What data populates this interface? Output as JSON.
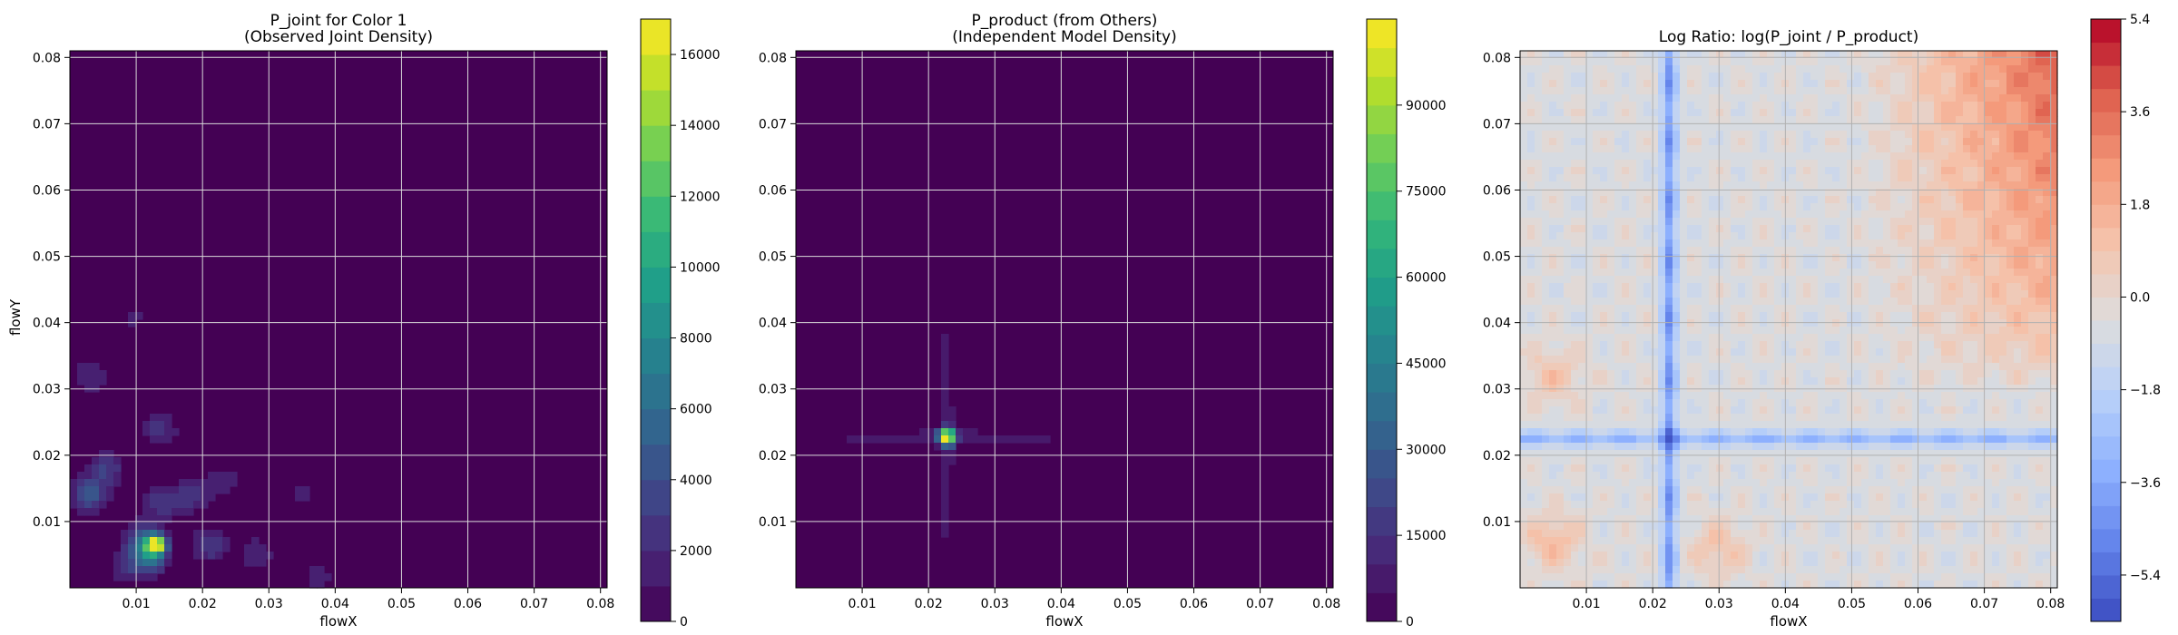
{
  "chart_data": [
    {
      "type": "heatmap",
      "title": "P_joint for Color 1\n(Observed Joint Density)",
      "xlabel": "flowX",
      "ylabel": "flowY",
      "xlim": [
        0.0,
        0.081
      ],
      "ylim": [
        0.0,
        0.081
      ],
      "xticks": [
        "0.01",
        "0.02",
        "0.03",
        "0.04",
        "0.05",
        "0.06",
        "0.07",
        "0.08"
      ],
      "yticks": [
        "0.01",
        "0.02",
        "0.03",
        "0.04",
        "0.05",
        "0.06",
        "0.07",
        "0.08"
      ],
      "grid": true,
      "colormap": "viridis",
      "colorbar": {
        "min": 0,
        "max": 17000,
        "ticks": [
          0,
          2000,
          4000,
          6000,
          8000,
          10000,
          12000,
          14000,
          16000
        ],
        "ticklabels": [
          "0",
          "2000",
          "4000",
          "6000",
          "8000",
          "10000",
          "12000",
          "14000",
          "16000"
        ],
        "levels": 17
      },
      "blobs": [
        {
          "x": 0.013,
          "y": 0.0065,
          "value": 16000
        },
        {
          "x": 0.012,
          "y": 0.005,
          "value": 7000
        },
        {
          "x": 0.011,
          "y": 0.0075,
          "value": 4000
        },
        {
          "x": 0.003,
          "y": 0.014,
          "value": 4500
        },
        {
          "x": 0.0055,
          "y": 0.018,
          "value": 3000
        },
        {
          "x": 0.014,
          "y": 0.013,
          "value": 3000
        },
        {
          "x": 0.0135,
          "y": 0.024,
          "value": 2500
        },
        {
          "x": 0.021,
          "y": 0.0065,
          "value": 3000
        },
        {
          "x": 0.0185,
          "y": 0.014,
          "value": 2500
        },
        {
          "x": 0.028,
          "y": 0.005,
          "value": 2000
        },
        {
          "x": 0.003,
          "y": 0.032,
          "value": 2000
        },
        {
          "x": 0.0095,
          "y": 0.041,
          "value": 1200
        },
        {
          "x": 0.023,
          "y": 0.016,
          "value": 1800
        },
        {
          "x": 0.0375,
          "y": 0.0015,
          "value": 1500
        },
        {
          "x": 0.0085,
          "y": 0.003,
          "value": 2200
        },
        {
          "x": 0.035,
          "y": 0.014,
          "value": 1200
        }
      ]
    },
    {
      "type": "heatmap",
      "title": "P_product (from Others)\n(Independent Model Density)",
      "xlabel": "flowX",
      "ylabel": "",
      "xlim": [
        0.0,
        0.081
      ],
      "ylim": [
        0.0,
        0.081
      ],
      "xticks": [
        "0.01",
        "0.02",
        "0.03",
        "0.04",
        "0.05",
        "0.06",
        "0.07",
        "0.08"
      ],
      "yticks": [
        "0.01",
        "0.02",
        "0.03",
        "0.04",
        "0.05",
        "0.06",
        "0.07",
        "0.08"
      ],
      "grid": true,
      "colormap": "viridis",
      "colorbar": {
        "min": 0,
        "max": 105000,
        "ticks": [
          0,
          15000,
          30000,
          45000,
          60000,
          75000,
          90000
        ],
        "ticklabels": [
          "0",
          "15000",
          "30000",
          "45000",
          "60000",
          "75000",
          "90000"
        ],
        "levels": 21
      },
      "peak": {
        "x": 0.0228,
        "y": 0.0228,
        "value": 100000
      },
      "cross_lines": {
        "x": 0.0228,
        "y": 0.0228,
        "value": 9000
      }
    },
    {
      "type": "heatmap",
      "title": "Log Ratio: log(P_joint / P_product)",
      "xlabel": "flowX",
      "ylabel": "",
      "xlim": [
        0.0,
        0.081
      ],
      "ylim": [
        0.0,
        0.081
      ],
      "xticks": [
        "0.01",
        "0.02",
        "0.03",
        "0.04",
        "0.05",
        "0.06",
        "0.07",
        "0.08"
      ],
      "yticks": [
        "0.01",
        "0.02",
        "0.03",
        "0.04",
        "0.05",
        "0.06",
        "0.07",
        "0.08"
      ],
      "grid": true,
      "colormap": "coolwarm",
      "colorbar": {
        "min": -6.3,
        "max": 5.4,
        "ticks": [
          -5.4,
          -3.6,
          -1.8,
          0.0,
          1.8,
          3.6,
          5.4
        ],
        "ticklabels": [
          "−5.4",
          "−3.6",
          "−1.8",
          "0.0",
          "1.8",
          "3.6",
          "5.4"
        ],
        "levels": 26
      },
      "trend": {
        "low_region_value": -0.5,
        "high_corner_value": 4.5,
        "cross_line_value": -3.5
      }
    }
  ]
}
